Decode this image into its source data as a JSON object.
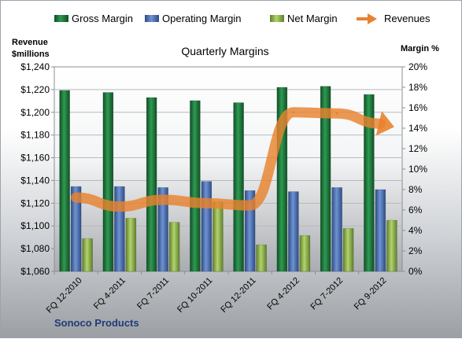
{
  "chart_data": {
    "type": "bar",
    "title": "Quarterly Margins",
    "company_label": "Sonoco Products",
    "left_axis_label": [
      "Revenue",
      "$millions"
    ],
    "right_axis_label": "Margin %",
    "categories": [
      "FQ 12-2010",
      "FQ 4-2011",
      "FQ 7-2011",
      "FQ 10-2011",
      "FQ 12-2011",
      "FQ 4-2012",
      "FQ 7-2012",
      "FQ 9-2012"
    ],
    "left_axis": {
      "min": 1060,
      "max": 1240,
      "step": 20,
      "tick_labels": [
        "$1,060",
        "$1,080",
        "$1,100",
        "$1,120",
        "$1,140",
        "$1,160",
        "$1,180",
        "$1,200",
        "$1,220",
        "$1,240"
      ]
    },
    "right_axis": {
      "min": 0,
      "max": 20,
      "step": 2,
      "tick_labels": [
        "0%",
        "2%",
        "4%",
        "6%",
        "8%",
        "10%",
        "12%",
        "14%",
        "16%",
        "18%",
        "20%"
      ]
    },
    "series": [
      {
        "name": "Gross Margin",
        "type": "bar",
        "axis": "right",
        "color": "#1e7b3e",
        "values": [
          17.7,
          17.5,
          17.0,
          16.7,
          16.5,
          18.0,
          18.1,
          17.3
        ]
      },
      {
        "name": "Operating Margin",
        "type": "bar",
        "axis": "right",
        "color": "#4a6fb0",
        "values": [
          8.3,
          8.3,
          8.2,
          8.8,
          7.9,
          7.8,
          8.2,
          8.0
        ]
      },
      {
        "name": "Net Margin",
        "type": "bar",
        "axis": "right",
        "color": "#8cb14a",
        "values": [
          3.2,
          5.2,
          4.8,
          6.8,
          2.6,
          3.5,
          4.2,
          5.0
        ]
      },
      {
        "name": "Revenues",
        "type": "line",
        "axis": "left",
        "color": "#e8822e",
        "values": [
          1125,
          1117,
          1123,
          1120,
          1118,
          1200,
          1199,
          1190
        ]
      }
    ],
    "legend_position": "top",
    "grid": true
  }
}
